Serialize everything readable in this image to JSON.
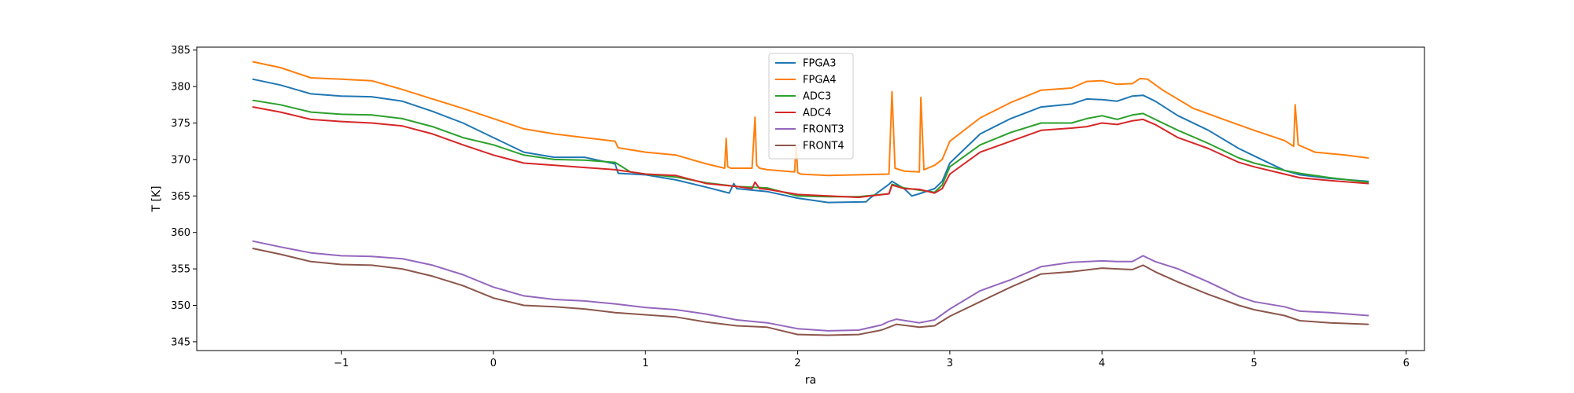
{
  "chart_data": {
    "type": "line",
    "title": "",
    "xlabel": "ra",
    "ylabel": "T [K]",
    "xlim": [
      -1.95,
      6.12
    ],
    "ylim": [
      343.8,
      385.4
    ],
    "xticks": [
      -1,
      0,
      1,
      2,
      3,
      4,
      5,
      6
    ],
    "xtick_labels": [
      "−1",
      "0",
      "1",
      "2",
      "3",
      "4",
      "5",
      "6"
    ],
    "yticks": [
      345,
      350,
      355,
      360,
      365,
      370,
      375,
      380,
      385
    ],
    "ytick_labels": [
      "345",
      "350",
      "355",
      "360",
      "365",
      "370",
      "375",
      "380",
      "385"
    ],
    "grid": false,
    "legend_position": "top-center",
    "series": [
      {
        "name": "FPGA3",
        "color": "#1f77b4",
        "x": [
          -1.58,
          -1.4,
          -1.2,
          -1.0,
          -0.8,
          -0.6,
          -0.4,
          -0.2,
          0.0,
          0.2,
          0.4,
          0.6,
          0.8,
          0.82,
          1.0,
          1.2,
          1.4,
          1.55,
          1.58,
          1.6,
          1.8,
          2.0,
          2.2,
          2.45,
          2.47,
          2.6,
          2.62,
          2.7,
          2.75,
          2.8,
          2.9,
          2.95,
          3.0,
          3.2,
          3.4,
          3.6,
          3.8,
          3.9,
          4.0,
          4.1,
          4.2,
          4.27,
          4.35,
          4.5,
          4.7,
          4.9,
          5.0,
          5.2,
          5.3,
          5.5,
          5.75
        ],
        "values": [
          381.0,
          380.2,
          379.0,
          378.7,
          378.6,
          378.0,
          376.6,
          375.0,
          373.0,
          371.0,
          370.3,
          370.3,
          369.4,
          368.1,
          367.9,
          367.2,
          366.2,
          365.4,
          366.7,
          366.0,
          365.6,
          364.7,
          364.1,
          364.2,
          364.6,
          366.6,
          367.0,
          366.0,
          365.0,
          365.3,
          366.0,
          367.0,
          369.5,
          373.5,
          375.6,
          377.2,
          377.6,
          378.3,
          378.2,
          378.0,
          378.7,
          378.8,
          378.0,
          376.0,
          374.0,
          371.5,
          370.5,
          368.5,
          367.9,
          367.4,
          367.0
        ]
      },
      {
        "name": "FPGA4",
        "color": "#ff7f0e",
        "x": [
          -1.58,
          -1.4,
          -1.2,
          -1.0,
          -0.8,
          -0.6,
          -0.4,
          -0.2,
          0.0,
          0.2,
          0.4,
          0.6,
          0.8,
          0.82,
          1.0,
          1.2,
          1.4,
          1.52,
          1.53,
          1.54,
          1.56,
          1.7,
          1.72,
          1.73,
          1.75,
          1.8,
          1.98,
          1.99,
          2.0,
          2.02,
          2.2,
          2.4,
          2.6,
          2.62,
          2.64,
          2.7,
          2.8,
          2.81,
          2.83,
          2.9,
          2.95,
          3.0,
          3.2,
          3.4,
          3.6,
          3.8,
          3.9,
          4.0,
          4.1,
          4.2,
          4.25,
          4.3,
          4.4,
          4.6,
          4.8,
          5.0,
          5.2,
          5.26,
          5.27,
          5.29,
          5.4,
          5.6,
          5.75
        ],
        "values": [
          383.4,
          382.6,
          381.2,
          381.0,
          380.8,
          379.6,
          378.3,
          377.0,
          375.6,
          374.2,
          373.5,
          373.0,
          372.5,
          371.6,
          371.0,
          370.6,
          369.4,
          368.8,
          372.9,
          369.0,
          368.8,
          368.8,
          375.8,
          369.2,
          368.8,
          368.6,
          368.3,
          372.0,
          368.2,
          368.0,
          367.8,
          367.9,
          368.0,
          379.3,
          368.8,
          368.4,
          368.3,
          378.5,
          368.6,
          369.2,
          370.0,
          372.5,
          375.7,
          377.8,
          379.5,
          379.8,
          380.7,
          380.8,
          380.3,
          380.4,
          381.1,
          381.0,
          379.5,
          377.0,
          375.5,
          374.0,
          372.6,
          371.8,
          377.5,
          372.0,
          371.0,
          370.6,
          370.2
        ]
      },
      {
        "name": "ADC3",
        "color": "#2ca02c",
        "x": [
          -1.58,
          -1.4,
          -1.2,
          -1.0,
          -0.8,
          -0.6,
          -0.4,
          -0.2,
          0.0,
          0.2,
          0.4,
          0.6,
          0.8,
          0.9,
          1.0,
          1.2,
          1.4,
          1.6,
          1.8,
          2.0,
          2.2,
          2.4,
          2.6,
          2.62,
          2.7,
          2.8,
          2.9,
          2.95,
          3.0,
          3.2,
          3.4,
          3.6,
          3.8,
          3.9,
          4.0,
          4.1,
          4.2,
          4.27,
          4.35,
          4.5,
          4.7,
          4.9,
          5.0,
          5.2,
          5.3,
          5.5,
          5.75
        ],
        "values": [
          378.1,
          377.5,
          376.5,
          376.2,
          376.1,
          375.6,
          374.5,
          373.0,
          372.0,
          370.6,
          370.0,
          369.9,
          369.6,
          368.3,
          368.0,
          367.6,
          366.8,
          366.3,
          366.1,
          365.0,
          364.9,
          364.9,
          365.3,
          366.6,
          366.1,
          365.8,
          365.5,
          366.5,
          369.0,
          372.0,
          373.7,
          375.0,
          375.0,
          375.6,
          376.0,
          375.5,
          376.1,
          376.3,
          375.5,
          374.0,
          372.2,
          370.2,
          369.5,
          368.5,
          368.1,
          367.5,
          366.9
        ]
      },
      {
        "name": "ADC4",
        "color": "#d62728",
        "x": [
          -1.58,
          -1.4,
          -1.2,
          -1.0,
          -0.8,
          -0.6,
          -0.4,
          -0.2,
          0.0,
          0.2,
          0.4,
          0.6,
          0.8,
          1.0,
          1.2,
          1.4,
          1.6,
          1.7,
          1.72,
          1.75,
          1.8,
          2.0,
          2.2,
          2.4,
          2.6,
          2.62,
          2.7,
          2.8,
          2.9,
          2.95,
          3.0,
          3.2,
          3.4,
          3.6,
          3.8,
          3.9,
          4.0,
          4.1,
          4.2,
          4.27,
          4.35,
          4.5,
          4.7,
          4.9,
          5.0,
          5.2,
          5.3,
          5.5,
          5.75
        ],
        "values": [
          377.2,
          376.5,
          375.5,
          375.2,
          375.0,
          374.6,
          373.5,
          372.0,
          370.6,
          369.5,
          369.2,
          368.9,
          368.6,
          368.0,
          367.8,
          366.7,
          366.3,
          366.0,
          366.9,
          366.0,
          365.9,
          365.2,
          365.0,
          364.8,
          365.3,
          366.5,
          366.0,
          365.9,
          365.4,
          366.0,
          368.0,
          371.0,
          372.5,
          374.0,
          374.3,
          374.5,
          375.0,
          374.8,
          375.3,
          375.5,
          374.8,
          373.0,
          371.5,
          369.6,
          369.0,
          368.0,
          367.5,
          367.1,
          366.7
        ]
      },
      {
        "name": "FRONT3",
        "color": "#9467bd",
        "x": [
          -1.58,
          -1.4,
          -1.2,
          -1.0,
          -0.8,
          -0.6,
          -0.4,
          -0.2,
          0.0,
          0.2,
          0.4,
          0.6,
          0.8,
          1.0,
          1.2,
          1.4,
          1.6,
          1.8,
          2.0,
          2.2,
          2.4,
          2.55,
          2.6,
          2.65,
          2.8,
          2.9,
          3.0,
          3.2,
          3.4,
          3.6,
          3.8,
          4.0,
          4.1,
          4.2,
          4.27,
          4.35,
          4.5,
          4.7,
          4.9,
          5.0,
          5.2,
          5.3,
          5.5,
          5.75
        ],
        "values": [
          358.8,
          358.0,
          357.2,
          356.8,
          356.7,
          356.4,
          355.5,
          354.2,
          352.5,
          351.3,
          350.8,
          350.6,
          350.2,
          349.7,
          349.4,
          348.8,
          348.0,
          347.6,
          346.8,
          346.5,
          346.6,
          347.3,
          347.8,
          348.1,
          347.6,
          348.0,
          349.5,
          352.0,
          353.5,
          355.3,
          355.9,
          356.1,
          356.0,
          356.0,
          356.8,
          356.0,
          355.0,
          353.2,
          351.2,
          350.5,
          349.8,
          349.2,
          349.0,
          348.6
        ]
      },
      {
        "name": "FRONT4",
        "color": "#8c564b",
        "x": [
          -1.58,
          -1.4,
          -1.2,
          -1.0,
          -0.8,
          -0.6,
          -0.4,
          -0.2,
          0.0,
          0.2,
          0.4,
          0.6,
          0.8,
          1.0,
          1.2,
          1.4,
          1.6,
          1.8,
          2.0,
          2.2,
          2.4,
          2.55,
          2.6,
          2.65,
          2.8,
          2.9,
          3.0,
          3.2,
          3.4,
          3.6,
          3.8,
          4.0,
          4.1,
          4.2,
          4.27,
          4.35,
          4.5,
          4.7,
          4.9,
          5.0,
          5.2,
          5.3,
          5.5,
          5.75
        ],
        "values": [
          357.8,
          357.0,
          356.0,
          355.6,
          355.5,
          355.0,
          354.0,
          352.7,
          351.0,
          350.0,
          349.8,
          349.5,
          349.0,
          348.7,
          348.4,
          347.7,
          347.2,
          347.0,
          346.0,
          345.9,
          346.0,
          346.6,
          347.0,
          347.4,
          347.0,
          347.2,
          348.5,
          350.5,
          352.5,
          354.3,
          354.6,
          355.1,
          355.0,
          354.9,
          355.5,
          354.6,
          353.2,
          351.5,
          350.0,
          349.4,
          348.6,
          347.9,
          347.6,
          347.4
        ]
      }
    ]
  }
}
